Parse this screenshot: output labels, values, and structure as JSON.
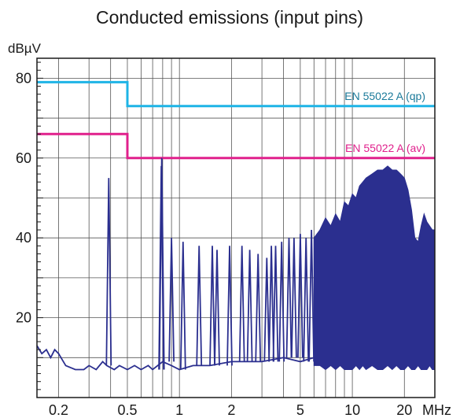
{
  "chart_data": {
    "type": "line",
    "title": "Conducted emissions (input pins)",
    "ylabel": "dBµV",
    "xlabel": "MHz",
    "x_scale": "log",
    "xlim": [
      0.15,
      30
    ],
    "ylim": [
      0,
      85
    ],
    "grid": true,
    "x_ticks": [
      {
        "value": 0.2,
        "label": "0.2"
      },
      {
        "value": 0.5,
        "label": "0.5"
      },
      {
        "value": 1,
        "label": "1"
      },
      {
        "value": 2,
        "label": "2"
      },
      {
        "value": 5,
        "label": "5"
      },
      {
        "value": 10,
        "label": "10"
      },
      {
        "value": 20,
        "label": "20"
      }
    ],
    "y_ticks": [
      {
        "value": 20,
        "label": "20"
      },
      {
        "value": 40,
        "label": "40"
      },
      {
        "value": 60,
        "label": "60"
      },
      {
        "value": 80,
        "label": "80"
      }
    ],
    "limits": [
      {
        "name": "EN 55022 A (qp)",
        "color": "#1eb4e6",
        "label_color": "#1b7a9a",
        "x": [
          0.15,
          0.5,
          0.5,
          30
        ],
        "y": [
          79,
          79,
          73,
          73
        ]
      },
      {
        "name": "EN 55022 A (av)",
        "color": "#e0208c",
        "label_color": "#e0208c",
        "x": [
          0.15,
          0.5,
          0.5,
          30
        ],
        "y": [
          66,
          66,
          60,
          60
        ]
      }
    ],
    "measurement": {
      "color": "#2b2f8f",
      "baseline_x": [
        0.15,
        0.16,
        0.17,
        0.18,
        0.19,
        0.2,
        0.22,
        0.25,
        0.28,
        0.3,
        0.33,
        0.36,
        0.38,
        0.42,
        0.45,
        0.5,
        0.55,
        0.6,
        0.66,
        0.7,
        0.8,
        0.9,
        1.0,
        1.2,
        1.5,
        2.0,
        3.0,
        4.0,
        5.0,
        6.0,
        7.0,
        8.0
      ],
      "baseline_y": [
        13,
        11,
        12,
        10,
        12,
        11,
        8,
        7,
        7,
        8,
        7,
        9,
        8,
        7,
        8,
        7,
        8,
        7,
        8,
        7,
        9,
        8,
        7,
        8,
        8,
        9,
        9,
        10,
        9,
        10,
        9,
        9
      ],
      "peaks_x": [
        0.39,
        0.785,
        0.79,
        0.9,
        1.05,
        1.3,
        1.55,
        1.65,
        1.95,
        2.3,
        2.55,
        2.85,
        3.2,
        3.4,
        3.6,
        3.9,
        4.3,
        4.6,
        5.0,
        5.4,
        5.8
      ],
      "peaks_y": [
        55,
        58,
        60,
        40,
        39,
        38,
        38,
        37,
        38,
        38,
        37,
        36,
        35,
        38,
        38,
        39,
        40,
        40,
        41,
        40,
        42
      ],
      "envelope_x": [
        6.0,
        6.5,
        7.0,
        7.5,
        8.0,
        8.5,
        9.0,
        9.5,
        10.0,
        10.5,
        11.0,
        11.5,
        12.0,
        13.0,
        14.0,
        15.0,
        16.0,
        17.0,
        18.0,
        19.0,
        20.0,
        21.0,
        22.0,
        23.0,
        24.0,
        25.0,
        26.0,
        27.0,
        28.0,
        29.0,
        30.0
      ],
      "envelope_top": [
        40,
        42,
        45,
        43,
        46,
        44,
        49,
        48,
        51,
        50,
        53,
        54,
        55,
        56,
        57,
        57,
        58,
        57,
        57,
        56,
        55,
        52,
        47,
        40,
        39,
        43,
        46,
        44,
        43,
        42,
        42
      ],
      "envelope_bottom": [
        8,
        8,
        7,
        8,
        7,
        8,
        7,
        7,
        7,
        8,
        7,
        8,
        7,
        8,
        7,
        7,
        8,
        7,
        8,
        7,
        7,
        8,
        7,
        7,
        8,
        7,
        7,
        7,
        8,
        7,
        7
      ]
    }
  }
}
